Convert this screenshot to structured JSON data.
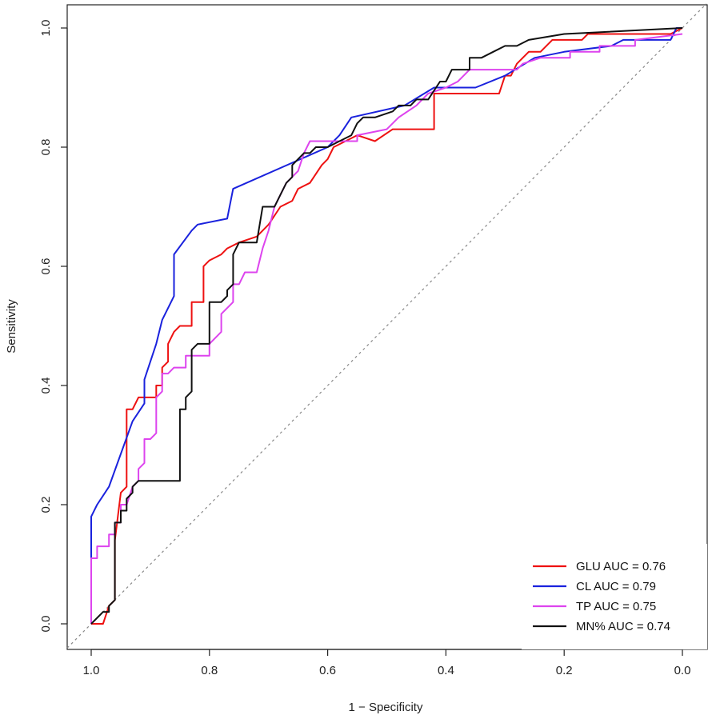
{
  "chart_data": {
    "type": "line",
    "title": "",
    "xlabel": "1 − Specificity",
    "ylabel": "Sensitivity",
    "xlim": [
      1.0,
      0.0
    ],
    "ylim": [
      0.0,
      1.0
    ],
    "xticks": [
      "1.0",
      "0.8",
      "0.6",
      "0.4",
      "0.2",
      "0.0"
    ],
    "yticks": [
      "0.0",
      "0.2",
      "0.4",
      "0.6",
      "0.8",
      "1.0"
    ],
    "grid": false,
    "legend_position": "bottom-right",
    "reference_line": {
      "from": [
        1.0,
        0.0
      ],
      "to": [
        0.0,
        1.0
      ],
      "style": "dotted",
      "color": "#888888"
    },
    "series": [
      {
        "name": "GLU AUC = 0.76",
        "color": "#ee1111",
        "points": [
          [
            1.0,
            0.0
          ],
          [
            0.98,
            0.0
          ],
          [
            0.97,
            0.03
          ],
          [
            0.96,
            0.04
          ],
          [
            0.96,
            0.14
          ],
          [
            0.95,
            0.22
          ],
          [
            0.94,
            0.23
          ],
          [
            0.94,
            0.36
          ],
          [
            0.93,
            0.36
          ],
          [
            0.92,
            0.38
          ],
          [
            0.89,
            0.38
          ],
          [
            0.89,
            0.4
          ],
          [
            0.88,
            0.4
          ],
          [
            0.88,
            0.43
          ],
          [
            0.87,
            0.44
          ],
          [
            0.87,
            0.47
          ],
          [
            0.86,
            0.49
          ],
          [
            0.85,
            0.5
          ],
          [
            0.83,
            0.5
          ],
          [
            0.83,
            0.54
          ],
          [
            0.81,
            0.54
          ],
          [
            0.81,
            0.6
          ],
          [
            0.8,
            0.61
          ],
          [
            0.78,
            0.62
          ],
          [
            0.77,
            0.63
          ],
          [
            0.75,
            0.64
          ],
          [
            0.72,
            0.65
          ],
          [
            0.7,
            0.67
          ],
          [
            0.68,
            0.7
          ],
          [
            0.66,
            0.71
          ],
          [
            0.65,
            0.73
          ],
          [
            0.63,
            0.74
          ],
          [
            0.61,
            0.77
          ],
          [
            0.6,
            0.78
          ],
          [
            0.59,
            0.8
          ],
          [
            0.55,
            0.82
          ],
          [
            0.52,
            0.81
          ],
          [
            0.49,
            0.83
          ],
          [
            0.42,
            0.83
          ],
          [
            0.42,
            0.89
          ],
          [
            0.31,
            0.89
          ],
          [
            0.3,
            0.92
          ],
          [
            0.29,
            0.92
          ],
          [
            0.28,
            0.94
          ],
          [
            0.26,
            0.96
          ],
          [
            0.24,
            0.96
          ],
          [
            0.22,
            0.98
          ],
          [
            0.17,
            0.98
          ],
          [
            0.16,
            0.99
          ],
          [
            0.02,
            0.99
          ],
          [
            0.0,
            1.0
          ]
        ]
      },
      {
        "name": "CL AUC = 0.79",
        "color": "#1a22dd",
        "points": [
          [
            1.0,
            0.0
          ],
          [
            1.0,
            0.18
          ],
          [
            0.99,
            0.2
          ],
          [
            0.97,
            0.23
          ],
          [
            0.93,
            0.34
          ],
          [
            0.91,
            0.37
          ],
          [
            0.91,
            0.41
          ],
          [
            0.89,
            0.47
          ],
          [
            0.88,
            0.51
          ],
          [
            0.86,
            0.55
          ],
          [
            0.86,
            0.62
          ],
          [
            0.83,
            0.66
          ],
          [
            0.82,
            0.67
          ],
          [
            0.77,
            0.68
          ],
          [
            0.76,
            0.73
          ],
          [
            0.6,
            0.8
          ],
          [
            0.58,
            0.82
          ],
          [
            0.56,
            0.85
          ],
          [
            0.47,
            0.87
          ],
          [
            0.42,
            0.9
          ],
          [
            0.35,
            0.9
          ],
          [
            0.3,
            0.92
          ],
          [
            0.25,
            0.95
          ],
          [
            0.2,
            0.96
          ],
          [
            0.12,
            0.97
          ],
          [
            0.1,
            0.98
          ],
          [
            0.02,
            0.98
          ],
          [
            0.01,
            1.0
          ],
          [
            0.0,
            1.0
          ]
        ]
      },
      {
        "name": "TP AUC = 0.75",
        "color": "#dd44ee",
        "points": [
          [
            1.0,
            0.0
          ],
          [
            1.0,
            0.11
          ],
          [
            0.99,
            0.11
          ],
          [
            0.99,
            0.13
          ],
          [
            0.97,
            0.13
          ],
          [
            0.97,
            0.15
          ],
          [
            0.96,
            0.15
          ],
          [
            0.96,
            0.17
          ],
          [
            0.95,
            0.17
          ],
          [
            0.95,
            0.2
          ],
          [
            0.94,
            0.2
          ],
          [
            0.93,
            0.23
          ],
          [
            0.92,
            0.24
          ],
          [
            0.92,
            0.26
          ],
          [
            0.91,
            0.27
          ],
          [
            0.91,
            0.31
          ],
          [
            0.9,
            0.31
          ],
          [
            0.89,
            0.32
          ],
          [
            0.89,
            0.38
          ],
          [
            0.88,
            0.39
          ],
          [
            0.88,
            0.42
          ],
          [
            0.87,
            0.42
          ],
          [
            0.86,
            0.43
          ],
          [
            0.84,
            0.43
          ],
          [
            0.84,
            0.45
          ],
          [
            0.8,
            0.45
          ],
          [
            0.8,
            0.47
          ],
          [
            0.78,
            0.49
          ],
          [
            0.78,
            0.52
          ],
          [
            0.76,
            0.54
          ],
          [
            0.76,
            0.57
          ],
          [
            0.75,
            0.57
          ],
          [
            0.74,
            0.59
          ],
          [
            0.72,
            0.59
          ],
          [
            0.71,
            0.63
          ],
          [
            0.7,
            0.66
          ],
          [
            0.69,
            0.7
          ],
          [
            0.68,
            0.72
          ],
          [
            0.67,
            0.74
          ],
          [
            0.65,
            0.76
          ],
          [
            0.64,
            0.79
          ],
          [
            0.63,
            0.81
          ],
          [
            0.58,
            0.81
          ],
          [
            0.55,
            0.81
          ],
          [
            0.55,
            0.82
          ],
          [
            0.5,
            0.83
          ],
          [
            0.48,
            0.85
          ],
          [
            0.45,
            0.87
          ],
          [
            0.43,
            0.89
          ],
          [
            0.4,
            0.9
          ],
          [
            0.38,
            0.91
          ],
          [
            0.37,
            0.92
          ],
          [
            0.36,
            0.93
          ],
          [
            0.28,
            0.93
          ],
          [
            0.27,
            0.94
          ],
          [
            0.24,
            0.95
          ],
          [
            0.19,
            0.95
          ],
          [
            0.19,
            0.96
          ],
          [
            0.14,
            0.96
          ],
          [
            0.14,
            0.97
          ],
          [
            0.08,
            0.97
          ],
          [
            0.08,
            0.98
          ],
          [
            0.0,
            0.99
          ]
        ]
      },
      {
        "name": "MN% AUC = 0.74",
        "color": "#111111",
        "points": [
          [
            1.0,
            0.0
          ],
          [
            0.98,
            0.02
          ],
          [
            0.97,
            0.02
          ],
          [
            0.97,
            0.03
          ],
          [
            0.96,
            0.04
          ],
          [
            0.96,
            0.17
          ],
          [
            0.95,
            0.17
          ],
          [
            0.95,
            0.19
          ],
          [
            0.94,
            0.19
          ],
          [
            0.94,
            0.21
          ],
          [
            0.93,
            0.22
          ],
          [
            0.93,
            0.23
          ],
          [
            0.92,
            0.24
          ],
          [
            0.85,
            0.24
          ],
          [
            0.85,
            0.36
          ],
          [
            0.84,
            0.36
          ],
          [
            0.84,
            0.38
          ],
          [
            0.83,
            0.39
          ],
          [
            0.83,
            0.46
          ],
          [
            0.82,
            0.47
          ],
          [
            0.8,
            0.47
          ],
          [
            0.8,
            0.54
          ],
          [
            0.78,
            0.54
          ],
          [
            0.77,
            0.55
          ],
          [
            0.77,
            0.56
          ],
          [
            0.76,
            0.57
          ],
          [
            0.76,
            0.62
          ],
          [
            0.75,
            0.64
          ],
          [
            0.72,
            0.64
          ],
          [
            0.71,
            0.7
          ],
          [
            0.69,
            0.7
          ],
          [
            0.68,
            0.72
          ],
          [
            0.67,
            0.74
          ],
          [
            0.66,
            0.75
          ],
          [
            0.66,
            0.77
          ],
          [
            0.65,
            0.78
          ],
          [
            0.64,
            0.79
          ],
          [
            0.63,
            0.79
          ],
          [
            0.62,
            0.8
          ],
          [
            0.6,
            0.8
          ],
          [
            0.58,
            0.81
          ],
          [
            0.56,
            0.82
          ],
          [
            0.55,
            0.84
          ],
          [
            0.54,
            0.85
          ],
          [
            0.52,
            0.85
          ],
          [
            0.49,
            0.86
          ],
          [
            0.48,
            0.87
          ],
          [
            0.46,
            0.87
          ],
          [
            0.45,
            0.88
          ],
          [
            0.43,
            0.88
          ],
          [
            0.41,
            0.91
          ],
          [
            0.4,
            0.91
          ],
          [
            0.39,
            0.93
          ],
          [
            0.36,
            0.93
          ],
          [
            0.36,
            0.95
          ],
          [
            0.34,
            0.95
          ],
          [
            0.32,
            0.96
          ],
          [
            0.3,
            0.97
          ],
          [
            0.28,
            0.97
          ],
          [
            0.26,
            0.98
          ],
          [
            0.2,
            0.99
          ],
          [
            0.0,
            1.0
          ]
        ]
      }
    ]
  }
}
